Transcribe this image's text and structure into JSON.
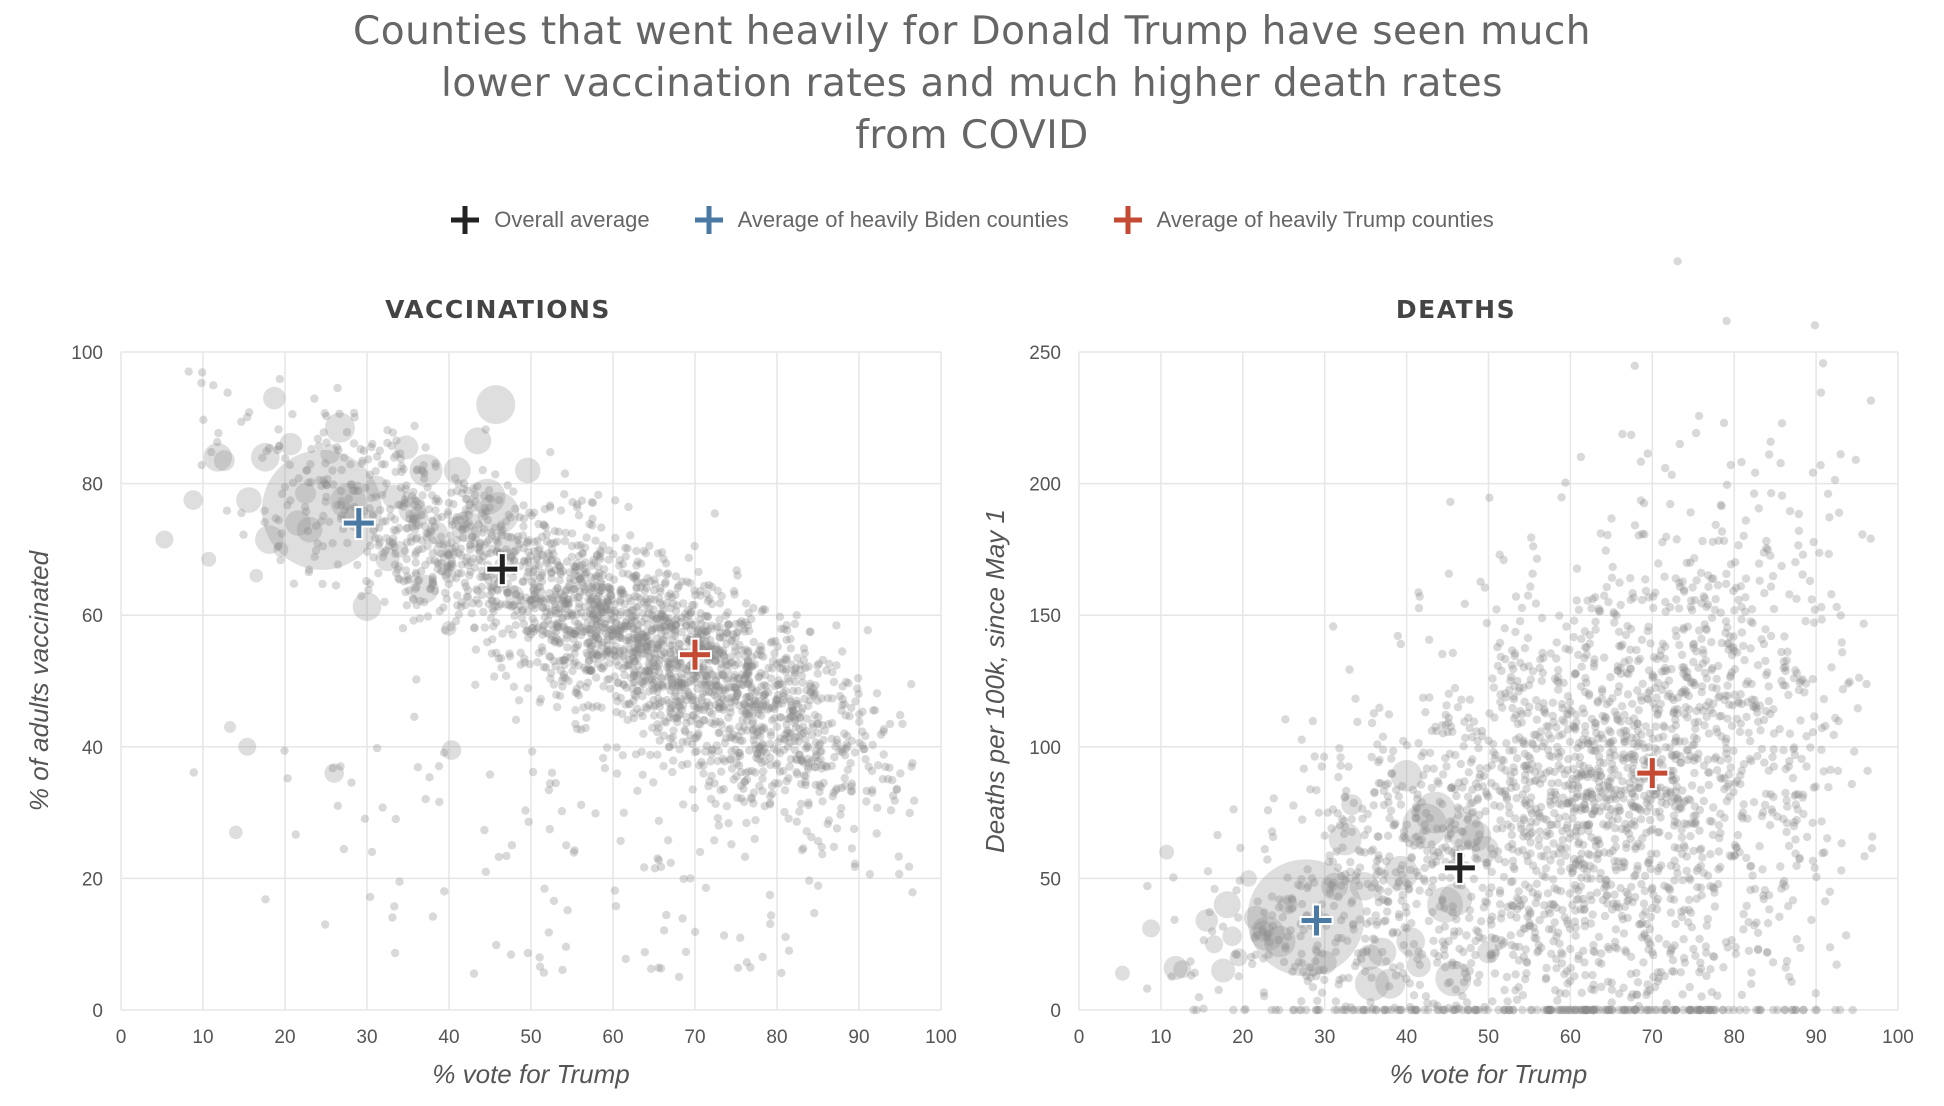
{
  "title_lines": [
    "Counties that went heavily for Donald Trump have seen much",
    "lower vaccination rates and much higher death rates",
    "from COVID"
  ],
  "legend": [
    {
      "label": "Overall average",
      "color": "#222222"
    },
    {
      "label": "Average of heavily Biden counties",
      "color": "#4a7aa3"
    },
    {
      "label": "Average of heavily Trump counties",
      "color": "#c44a34"
    }
  ],
  "colors": {
    "points": "#8a8a8a",
    "grid": "#e6e6e6",
    "axis_text": "#555555"
  },
  "chart_data": [
    {
      "type": "scatter",
      "title": "VACCINATIONS",
      "xlabel": "% vote for Trump",
      "ylabel": "% of adults vaccinated",
      "xlim": [
        0,
        100
      ],
      "ylim": [
        0,
        100
      ],
      "xticks": [
        0,
        10,
        20,
        30,
        40,
        50,
        60,
        70,
        80,
        90,
        100
      ],
      "yticks": [
        0,
        20,
        40,
        60,
        80,
        100
      ],
      "grid": true,
      "averages": [
        {
          "name": "Overall average",
          "x": 46.5,
          "y": 67
        },
        {
          "name": "Average of heavily Biden counties",
          "x": 29,
          "y": 74
        },
        {
          "name": "Average of heavily Trump counties",
          "x": 70,
          "y": 54
        }
      ],
      "points": [
        [
          5.3,
          71.5,
          1.2
        ],
        [
          8.8,
          77.5,
          1.3
        ],
        [
          10.7,
          68.5,
          1
        ],
        [
          11.8,
          84,
          1.9
        ],
        [
          12.6,
          83.5,
          1.4
        ],
        [
          13.3,
          43,
          0.8
        ],
        [
          14,
          27,
          0.9
        ],
        [
          15.4,
          40,
          1.2
        ],
        [
          15.6,
          77.5,
          1.7
        ],
        [
          16.5,
          66,
          0.9
        ],
        [
          17.6,
          84,
          1.9
        ],
        [
          18.1,
          71.5,
          1.9
        ],
        [
          18.7,
          93,
          1.5
        ],
        [
          19.5,
          70,
          1
        ],
        [
          20.7,
          86,
          1.5
        ],
        [
          21.6,
          74,
          1.7
        ],
        [
          22.5,
          78.5,
          1.4
        ],
        [
          23,
          73,
          1.7
        ],
        [
          24.5,
          76,
          8
        ],
        [
          25.5,
          84.5,
          1.3
        ],
        [
          26,
          36,
          1.3
        ],
        [
          26.7,
          88.5,
          2
        ],
        [
          27.7,
          77.3,
          2.4
        ],
        [
          28.5,
          75,
          1.5
        ],
        [
          30,
          61.3,
          1.9
        ],
        [
          31.2,
          79.5,
          1.5
        ],
        [
          32.5,
          68.5,
          1.6
        ],
        [
          33.3,
          78,
          1.6
        ],
        [
          34.8,
          85.5,
          1.6
        ],
        [
          35.5,
          76,
          1.8
        ],
        [
          37,
          64,
          1.9
        ],
        [
          37.2,
          82,
          2.2
        ],
        [
          38.5,
          72.5,
          1.5
        ],
        [
          40,
          58,
          1
        ],
        [
          40.3,
          39.5,
          1.3
        ],
        [
          41,
          82,
          1.8
        ],
        [
          42.2,
          73.5,
          2.1
        ],
        [
          43.5,
          86.5,
          1.8
        ],
        [
          44.7,
          78,
          2.4
        ],
        [
          45.7,
          92,
          2.6
        ],
        [
          46,
          75.5,
          2.8
        ],
        [
          47.2,
          70.5,
          1.8
        ],
        [
          49.6,
          82,
          1.7
        ],
        [
          48,
          63,
          1.3
        ],
        [
          36.3,
          75,
          1.3
        ],
        [
          40,
          66,
          1
        ],
        [
          34,
          70,
          1.1
        ],
        [
          39,
          70,
          1
        ]
      ],
      "n_background_points": 2600
    },
    {
      "type": "scatter",
      "title": "DEATHS",
      "xlabel": "% vote for Trump",
      "ylabel": "Deaths per 100k, since May 1",
      "xlim": [
        0,
        100
      ],
      "ylim": [
        0,
        250
      ],
      "xticks": [
        0,
        10,
        20,
        30,
        40,
        50,
        60,
        70,
        80,
        90,
        100
      ],
      "yticks": [
        0,
        50,
        100,
        150,
        200,
        250
      ],
      "grid": true,
      "averages": [
        {
          "name": "Overall average",
          "x": 46.5,
          "y": 54
        },
        {
          "name": "Average of heavily Biden counties",
          "x": 29,
          "y": 34
        },
        {
          "name": "Average of heavily Trump counties",
          "x": 70,
          "y": 90
        }
      ],
      "points": [
        [
          5.3,
          14,
          1
        ],
        [
          8.8,
          31,
          1.2
        ],
        [
          10.7,
          60,
          1
        ],
        [
          11.8,
          16,
          1.6
        ],
        [
          12.6,
          15.5,
          1.2
        ],
        [
          15.6,
          34,
          1.5
        ],
        [
          16.5,
          25,
          1.2
        ],
        [
          17.6,
          15,
          1.6
        ],
        [
          18.1,
          40,
          1.8
        ],
        [
          18.7,
          28,
          1.3
        ],
        [
          19.5,
          20,
          1.2
        ],
        [
          20.7,
          50,
          1.1
        ],
        [
          21.6,
          35,
          1.6
        ],
        [
          22.5,
          30,
          1.4
        ],
        [
          23,
          29,
          2.3
        ],
        [
          24.5,
          26,
          2.1
        ],
        [
          25.5,
          40,
          1.3
        ],
        [
          27.7,
          35,
          7.8
        ],
        [
          30,
          18,
          1.6
        ],
        [
          31.2,
          47,
          1.8
        ],
        [
          32.5,
          65,
          2.2
        ],
        [
          33.3,
          78,
          1.4
        ],
        [
          34.8,
          47,
          1.9
        ],
        [
          35.5,
          20,
          1.7
        ],
        [
          35.8,
          10,
          2.3
        ],
        [
          37,
          22,
          1.9
        ],
        [
          38,
          10,
          2
        ],
        [
          39.3,
          52,
          2.3
        ],
        [
          40,
          89,
          2.1
        ],
        [
          40.5,
          26,
          1.9
        ],
        [
          41.5,
          17,
          1.6
        ],
        [
          42.2,
          70,
          3
        ],
        [
          43.5,
          75,
          2.8
        ],
        [
          44.7,
          40,
          2.4
        ],
        [
          45.7,
          12,
          2.4
        ],
        [
          46,
          42,
          2.2
        ],
        [
          47.2,
          68,
          2.5
        ],
        [
          48.5,
          66,
          2
        ],
        [
          49.6,
          61,
          1.8
        ],
        [
          50,
          22,
          1.5
        ]
      ],
      "n_background_points": 2600
    }
  ]
}
